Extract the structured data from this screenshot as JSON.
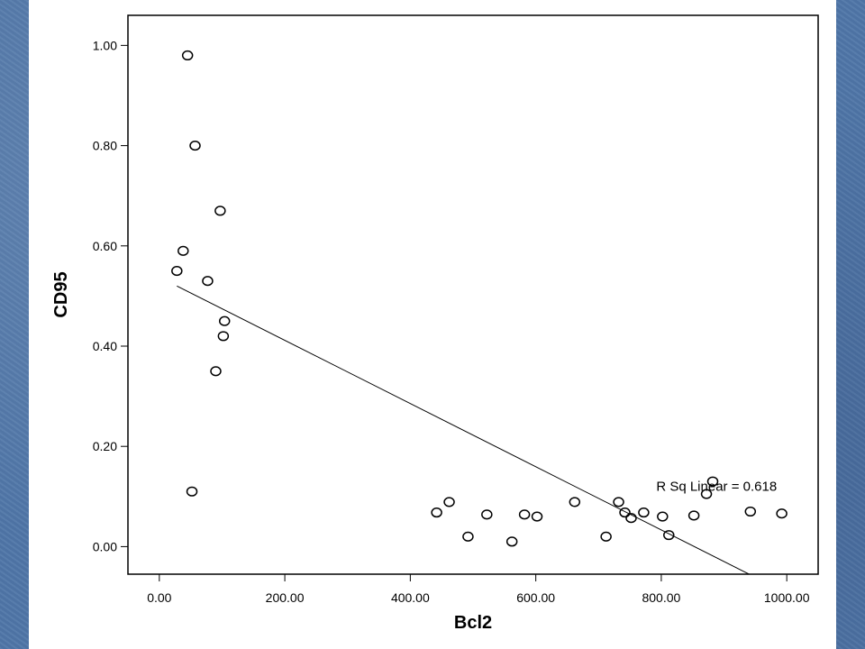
{
  "chart_data": {
    "type": "scatter",
    "xlabel": "Bcl2",
    "ylabel": "CD95",
    "xlim": [
      -50,
      1050
    ],
    "ylim": [
      -0.055,
      1.06
    ],
    "x_ticks": [
      "0.00",
      "200.00",
      "400.00",
      "600.00",
      "800.00",
      "1000.00"
    ],
    "x_tick_values": [
      0,
      200,
      400,
      600,
      800,
      1000
    ],
    "y_ticks": [
      "0.00",
      "0.20",
      "0.40",
      "0.60",
      "0.80",
      "1.00"
    ],
    "y_tick_values": [
      0,
      0.2,
      0.4,
      0.6,
      0.8,
      1.0
    ],
    "grid": false,
    "points": [
      {
        "x": 45,
        "y": 0.98
      },
      {
        "x": 57,
        "y": 0.8
      },
      {
        "x": 97,
        "y": 0.67
      },
      {
        "x": 38,
        "y": 0.59
      },
      {
        "x": 28,
        "y": 0.55
      },
      {
        "x": 77,
        "y": 0.53
      },
      {
        "x": 104,
        "y": 0.45
      },
      {
        "x": 102,
        "y": 0.42
      },
      {
        "x": 90,
        "y": 0.35
      },
      {
        "x": 52,
        "y": 0.11
      },
      {
        "x": 442,
        "y": 0.068
      },
      {
        "x": 462,
        "y": 0.089
      },
      {
        "x": 492,
        "y": 0.02
      },
      {
        "x": 522,
        "y": 0.064
      },
      {
        "x": 562,
        "y": 0.01
      },
      {
        "x": 582,
        "y": 0.064
      },
      {
        "x": 602,
        "y": 0.06
      },
      {
        "x": 662,
        "y": 0.089
      },
      {
        "x": 712,
        "y": 0.02
      },
      {
        "x": 732,
        "y": 0.089
      },
      {
        "x": 742,
        "y": 0.068
      },
      {
        "x": 752,
        "y": 0.057
      },
      {
        "x": 772,
        "y": 0.068
      },
      {
        "x": 802,
        "y": 0.06
      },
      {
        "x": 812,
        "y": 0.023
      },
      {
        "x": 852,
        "y": 0.062
      },
      {
        "x": 872,
        "y": 0.105
      },
      {
        "x": 882,
        "y": 0.13
      },
      {
        "x": 942,
        "y": 0.07
      },
      {
        "x": 992,
        "y": 0.066
      }
    ],
    "fit_line": {
      "x": [
        28,
        940
      ],
      "y": [
        0.52,
        -0.055
      ]
    },
    "annotation": {
      "text": "R Sq Linear = 0.618",
      "x": 792,
      "y": 0.12
    }
  }
}
